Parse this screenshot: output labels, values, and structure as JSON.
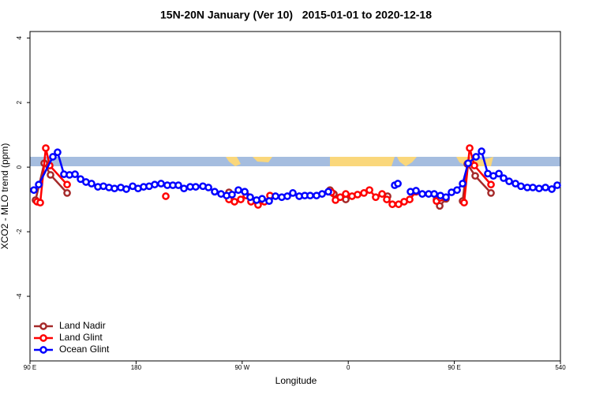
{
  "chart_data": {
    "type": "line",
    "title": "15N-20N January (Ver 10)   2015-01-01 to 2020-12-18",
    "xlabel": "Longitude",
    "ylabel": "XCO2 - MLO trend (ppm)",
    "xlim": [
      90,
      540
    ],
    "ylim": [
      -6.0,
      4.2
    ],
    "xticks": [
      {
        "value": 90,
        "label": "90 E"
      },
      180,
      {
        "value": 270,
        "label": "90 W"
      },
      {
        "value": 360,
        "label": "0"
      },
      {
        "value": 450,
        "label": "90 E"
      },
      540
    ],
    "yticks": [
      -4,
      -2,
      0,
      2,
      4
    ],
    "grid": false,
    "legend": "bottomleft",
    "series": [
      {
        "name": "Land Nadir",
        "color": "#a52a2a",
        "x": [
          94.7,
          102.1,
          107.4,
          121.5,
          null,
          258.8,
          null,
          344.5,
          347.8,
          null,
          357.9,
          null,
          393.4,
          null,
          434.9,
          437.6,
          442.9,
          null,
          457,
          461,
          467.7,
          481.1
        ],
        "values": [
          -1.02,
          0.12,
          -0.24,
          -0.8,
          null,
          -0.78,
          null,
          -0.71,
          -0.83,
          null,
          -1.0,
          null,
          -0.9,
          null,
          -1.0,
          -1.2,
          -0.98,
          null,
          -1.05,
          0.1,
          -0.27,
          -0.8
        ]
      },
      {
        "name": "Land Glint",
        "color": "#ff0000",
        "x": [
          96.0,
          98.7,
          103.4,
          106.7,
          121.5,
          null,
          205.2,
          null,
          258.8,
          263.5,
          268.8,
          273.5,
          277.5,
          283.5,
          288.9,
          293.6,
          null,
          345.8,
          349.2,
          353.2,
          357.9,
          363.2,
          367.9,
          373.3,
          378,
          383.3,
          388.7,
          392.7,
          397.4,
          402.7,
          407.4,
          412.1,
          417.5,
          null,
          434.9,
          438.2,
          null,
          458.3,
          463,
          467,
          481.1
        ],
        "values": [
          -1.07,
          -1.1,
          0.59,
          0.05,
          -0.54,
          null,
          -0.9,
          null,
          -1.0,
          -1.07,
          -1.0,
          -0.88,
          -1.07,
          -1.17,
          -1.07,
          -0.88,
          null,
          -0.78,
          -1.02,
          -0.93,
          -0.83,
          -0.9,
          -0.85,
          -0.8,
          -0.71,
          -0.93,
          -0.83,
          -1.0,
          -1.15,
          -1.15,
          -1.07,
          -1.0,
          -0.76,
          null,
          -1.05,
          -0.95,
          null,
          -1.1,
          0.59,
          0.05,
          -0.54
        ]
      },
      {
        "name": "Ocean Glint",
        "color": "#0000ff",
        "x": [
          93.3,
          97.4,
          109.4,
          113.4,
          118.8,
          123.5,
          128.2,
          132.9,
          137.5,
          142.2,
          147.6,
          152.3,
          157,
          161.7,
          167,
          171.7,
          177.1,
          181.7,
          186.4,
          191.1,
          195.8,
          201.2,
          206.5,
          211.2,
          215.9,
          220.6,
          225.9,
          230.6,
          236.7,
          241.4,
          246.7,
          252.1,
          256.8,
          261.4,
          266.8,
          272.2,
          276.8,
          282.2,
          286.9,
          292.9,
          298.3,
          303.6,
          308.3,
          313,
          318.4,
          323.1,
          327.7,
          333.1,
          337.8,
          343.1,
          null,
          399.4,
          402.1,
          null,
          412.8,
          417.5,
          422.8,
          428.2,
          432.9,
          438.2,
          442.9,
          447.6,
          452.3,
          457,
          461.7,
          468.4,
          473.1,
          478.4,
          483.1,
          487.8,
          491.8,
          496.5,
          501.9,
          506.5,
          511.9,
          516.6,
          521.9,
          527.3,
          532.7,
          537.3
        ],
        "values": [
          -0.71,
          -0.54,
          0.32,
          0.46,
          -0.22,
          -0.24,
          -0.22,
          -0.37,
          -0.46,
          -0.51,
          -0.61,
          -0.59,
          -0.63,
          -0.66,
          -0.63,
          -0.68,
          -0.59,
          -0.66,
          -0.61,
          -0.59,
          -0.54,
          -0.51,
          -0.56,
          -0.56,
          -0.56,
          -0.66,
          -0.61,
          -0.61,
          -0.59,
          -0.63,
          -0.76,
          -0.83,
          -0.88,
          -0.85,
          -0.71,
          -0.76,
          -0.93,
          -1.02,
          -0.98,
          -1.05,
          -0.9,
          -0.93,
          -0.9,
          -0.8,
          -0.9,
          -0.88,
          -0.88,
          -0.88,
          -0.83,
          -0.76,
          null,
          -0.56,
          -0.51,
          null,
          -0.76,
          -0.73,
          -0.83,
          -0.83,
          -0.83,
          -0.88,
          -0.93,
          -0.78,
          -0.71,
          -0.51,
          0.12,
          0.32,
          0.49,
          -0.2,
          -0.27,
          -0.2,
          -0.34,
          -0.44,
          -0.51,
          -0.59,
          -0.63,
          -0.63,
          -0.66,
          -0.63,
          -0.68,
          -0.56
        ]
      }
    ]
  }
}
